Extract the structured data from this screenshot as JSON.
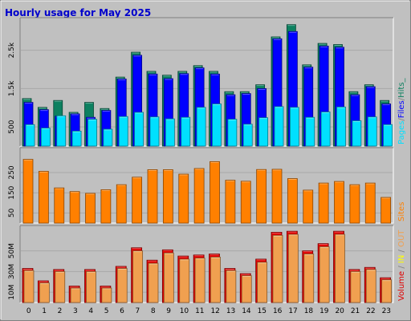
{
  "title": "Hourly usage for May 2025",
  "colors": {
    "hits": "#0d8060",
    "files": "#0000ff",
    "pages": "#00e0ff",
    "sites": "#ff8000",
    "volume": "#e00000",
    "in": "#ffff00",
    "out": "#f0a050",
    "plot_bg": "#c0c0c0",
    "title": "#0000cc"
  },
  "legend": {
    "top": [
      {
        "text": "Pages",
        "color": "#00e0ff"
      },
      {
        "text": "/",
        "color": "#808080"
      },
      {
        "text": "Files",
        "color": "#0000ff"
      },
      {
        "text": "/",
        "color": "#808080"
      },
      {
        "text": "Hits_",
        "color": "#0d8060"
      }
    ],
    "mid": [
      {
        "text": "Sites",
        "color": "#ff8000"
      }
    ],
    "bottom": [
      {
        "text": "Volume",
        "color": "#e00000"
      },
      {
        "text": " / ",
        "color": "#808080"
      },
      {
        "text": "IN",
        "color": "#ffff00"
      },
      {
        "text": " / ",
        "color": "#808080"
      },
      {
        "text": "OUT",
        "color": "#f0a050"
      }
    ]
  },
  "chart_data": [
    {
      "type": "bar",
      "title": "Hourly usage for May 2025",
      "categories": [
        "0",
        "1",
        "2",
        "3",
        "4",
        "5",
        "6",
        "7",
        "8",
        "9",
        "10",
        "11",
        "12",
        "13",
        "14",
        "15",
        "16",
        "17",
        "18",
        "19",
        "20",
        "21",
        "22",
        "23"
      ],
      "ylim": [
        0,
        3310
      ],
      "yticks": [
        {
          "v": 500,
          "label": "500"
        },
        {
          "v": 1500,
          "label": "1.5k"
        },
        {
          "v": 2500,
          "label": "2.5k"
        }
      ],
      "series": [
        {
          "name": "Hits",
          "values": [
            1240,
            1010,
            1190,
            880,
            1140,
            980,
            1800,
            2450,
            1950,
            1850,
            1950,
            2100,
            1950,
            1420,
            1420,
            1600,
            2850,
            3170,
            2120,
            2680,
            2650,
            1420,
            1600,
            1190
          ]
        },
        {
          "name": "Files",
          "values": [
            1140,
            950,
            780,
            840,
            750,
            930,
            1750,
            2370,
            1880,
            1760,
            1890,
            2040,
            1880,
            1340,
            1370,
            1500,
            2800,
            2990,
            2060,
            2610,
            2580,
            1340,
            1550,
            1100
          ]
        },
        {
          "name": "Pages",
          "values": [
            560,
            470,
            790,
            390,
            700,
            440,
            770,
            880,
            760,
            710,
            750,
            1010,
            1100,
            700,
            570,
            740,
            1030,
            1010,
            750,
            890,
            1020,
            660,
            760,
            560
          ]
        }
      ]
    },
    {
      "type": "bar",
      "categories": [
        "0",
        "1",
        "2",
        "3",
        "4",
        "5",
        "6",
        "7",
        "8",
        "9",
        "10",
        "11",
        "12",
        "13",
        "14",
        "15",
        "16",
        "17",
        "18",
        "19",
        "20",
        "21",
        "22",
        "23"
      ],
      "ylim": [
        0,
        365
      ],
      "yticks": [
        {
          "v": 50,
          "label": "50"
        },
        {
          "v": 150,
          "label": "150"
        },
        {
          "v": 250,
          "label": "250"
        }
      ],
      "series": [
        {
          "name": "Sites",
          "values": [
            315,
            256,
            174,
            156,
            147,
            165,
            190,
            227,
            264,
            264,
            242,
            270,
            304,
            212,
            207,
            265,
            266,
            220,
            163,
            198,
            206,
            190,
            198,
            127
          ]
        }
      ]
    },
    {
      "type": "bar",
      "categories": [
        "0",
        "1",
        "2",
        "3",
        "4",
        "5",
        "6",
        "7",
        "8",
        "9",
        "10",
        "11",
        "12",
        "13",
        "14",
        "15",
        "16",
        "17",
        "18",
        "19",
        "20",
        "21",
        "22",
        "23"
      ],
      "ylim": [
        0,
        73
      ],
      "yticks": [
        {
          "v": 10,
          "label": "10M"
        },
        {
          "v": 30,
          "label": "30M"
        },
        {
          "v": 50,
          "label": "50M"
        }
      ],
      "series": [
        {
          "name": "Volume",
          "values": [
            33,
            21,
            32,
            16,
            32,
            16,
            35,
            53,
            41,
            51,
            45,
            46,
            47,
            33,
            28,
            42,
            68,
            69,
            50,
            57,
            69,
            32,
            34,
            24
          ]
        },
        {
          "name": "OUT",
          "values": [
            31,
            19,
            30,
            14,
            30,
            14,
            33,
            50,
            38,
            48,
            42,
            43,
            44,
            31,
            26,
            39,
            65,
            66,
            47,
            54,
            66,
            30,
            32,
            22
          ]
        }
      ]
    }
  ]
}
